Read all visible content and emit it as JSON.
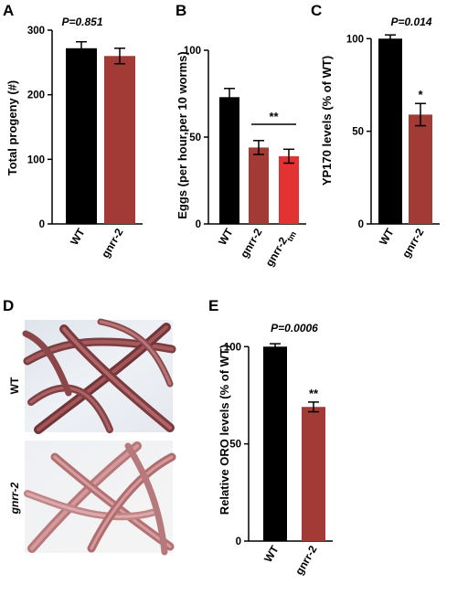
{
  "colors": {
    "black": "#000000",
    "red_brown": "#a23b35",
    "bright_red": "#e23232"
  },
  "chart_data": [
    {
      "type": "bar",
      "panel": "A",
      "categories": [
        "WT",
        "gnrr-2"
      ],
      "values": [
        272,
        260
      ],
      "errors": [
        10,
        12
      ],
      "colors": [
        "#000000",
        "#a23b35"
      ],
      "ylabel": "Total progeny (#)",
      "xlabel": "",
      "ylim": [
        0,
        300
      ],
      "yticks": [
        0,
        100,
        200,
        300
      ],
      "stat_text": "P=0.851",
      "significance": "",
      "grid": false
    },
    {
      "type": "bar",
      "panel": "B",
      "categories": [
        "WT",
        "gnrr-2",
        "gnrr-2"
      ],
      "category_subscripts": [
        "",
        "",
        "tm"
      ],
      "values": [
        73,
        44,
        39
      ],
      "errors": [
        5,
        4,
        4
      ],
      "colors": [
        "#000000",
        "#a23b35",
        "#e23232"
      ],
      "ylabel": "Eggs (per hour,per 10 worms)",
      "xlabel": "",
      "ylim": [
        0,
        100
      ],
      "yticks": [
        0,
        50,
        100
      ],
      "significance": "**",
      "significance_between": [
        1,
        2
      ],
      "grid": false
    },
    {
      "type": "bar",
      "panel": "C",
      "categories": [
        "WT",
        "gnrr-2"
      ],
      "values": [
        100,
        59
      ],
      "errors": [
        2,
        6
      ],
      "colors": [
        "#000000",
        "#a23b35"
      ],
      "ylabel": "YP170 levels (% of WT)",
      "xlabel": "",
      "ylim": [
        0,
        110
      ],
      "yticks": [
        0,
        50,
        100
      ],
      "stat_text": "P=0.014",
      "significance": "*",
      "grid": false
    },
    {
      "type": "bar",
      "panel": "E",
      "categories": [
        "WT",
        "gnrr-2"
      ],
      "values": [
        100,
        69
      ],
      "errors": [
        1.5,
        2.5
      ],
      "colors": [
        "#000000",
        "#a23b35"
      ],
      "ylabel": "Relative ORO levels (% of WT)",
      "xlabel": "",
      "ylim": [
        0,
        110
      ],
      "yticks": [
        0,
        50,
        100
      ],
      "stat_text": "P=0.0006",
      "significance": "**",
      "grid": false
    }
  ],
  "micrographs": {
    "panel": "D",
    "images": [
      {
        "label": "WT",
        "style": "normal"
      },
      {
        "label": "gnrr-2",
        "style": "italic"
      }
    ]
  }
}
